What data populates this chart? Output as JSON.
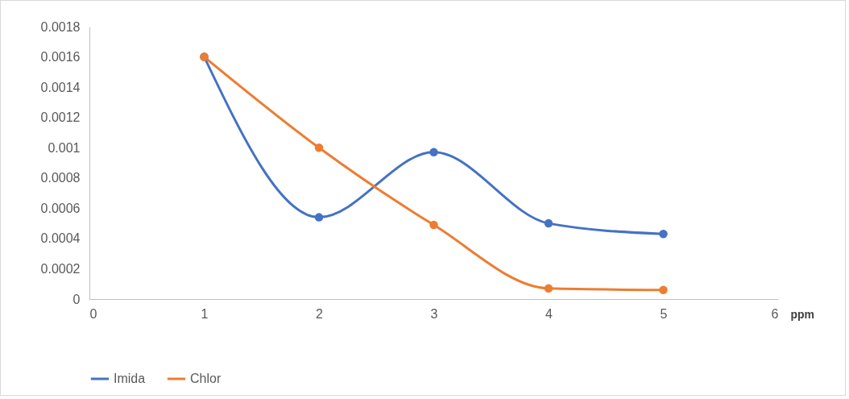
{
  "chart_data": {
    "type": "line",
    "xlabel": "ppm",
    "x": [
      1,
      2,
      3,
      4,
      5
    ],
    "series": [
      {
        "name": "Imida",
        "color": "#4472c4",
        "values": [
          0.0016,
          0.00054,
          0.00097,
          0.0005,
          0.00043
        ]
      },
      {
        "name": "Chlor",
        "color": "#ed7d31",
        "values": [
          0.0016,
          0.001,
          0.00049,
          7e-05,
          6e-05
        ]
      }
    ],
    "xlim": [
      0,
      6
    ],
    "xticks": [
      0,
      1,
      2,
      3,
      4,
      5,
      6
    ],
    "ylim": [
      0,
      0.0018
    ],
    "yticks": [
      0,
      0.0002,
      0.0004,
      0.0006,
      0.0008,
      0.001,
      0.0012,
      0.0014,
      0.0016,
      0.0018
    ],
    "grid": false,
    "legend": "bottom",
    "marker": "circle",
    "line_style": "solid"
  }
}
